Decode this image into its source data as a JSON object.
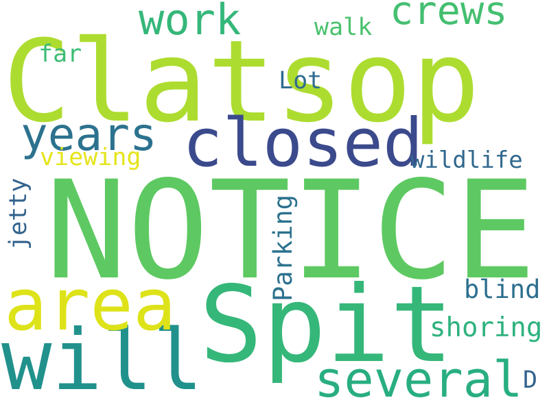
{
  "words": {
    "clatsop": {
      "text": "Clatsop",
      "color": "#addc30"
    },
    "notice": {
      "text": "NOTICE",
      "color": "#5ec962"
    },
    "spit": {
      "text": "Spit",
      "color": "#35b779"
    },
    "will": {
      "text": "will",
      "color": "#21918c"
    },
    "area": {
      "text": "area",
      "color": "#dde318"
    },
    "closed": {
      "text": "closed",
      "color": "#3b4a8c"
    },
    "several": {
      "text": "several",
      "color": "#28ae80"
    },
    "years": {
      "text": "years",
      "color": "#2c728e"
    },
    "work": {
      "text": "work",
      "color": "#35b779"
    },
    "crews": {
      "text": "crews",
      "color": "#44bf70"
    },
    "shoring": {
      "text": "shoring",
      "color": "#2db27d"
    },
    "wildlife": {
      "text": "wildlife",
      "color": "#31688e"
    },
    "blind": {
      "text": "blind",
      "color": "#2c6e8e"
    },
    "viewing": {
      "text": "viewing",
      "color": "#e5e419"
    },
    "walk": {
      "text": "walk",
      "color": "#4ac16d"
    },
    "far": {
      "text": "far",
      "color": "#3dbc74"
    },
    "lot": {
      "text": "Lot",
      "color": "#2f6b8e"
    },
    "d": {
      "text": "D",
      "color": "#33638d"
    },
    "parking": {
      "text": "Parking",
      "color": "#2c728e"
    },
    "jetty": {
      "text": "jetty",
      "color": "#33638d"
    }
  }
}
